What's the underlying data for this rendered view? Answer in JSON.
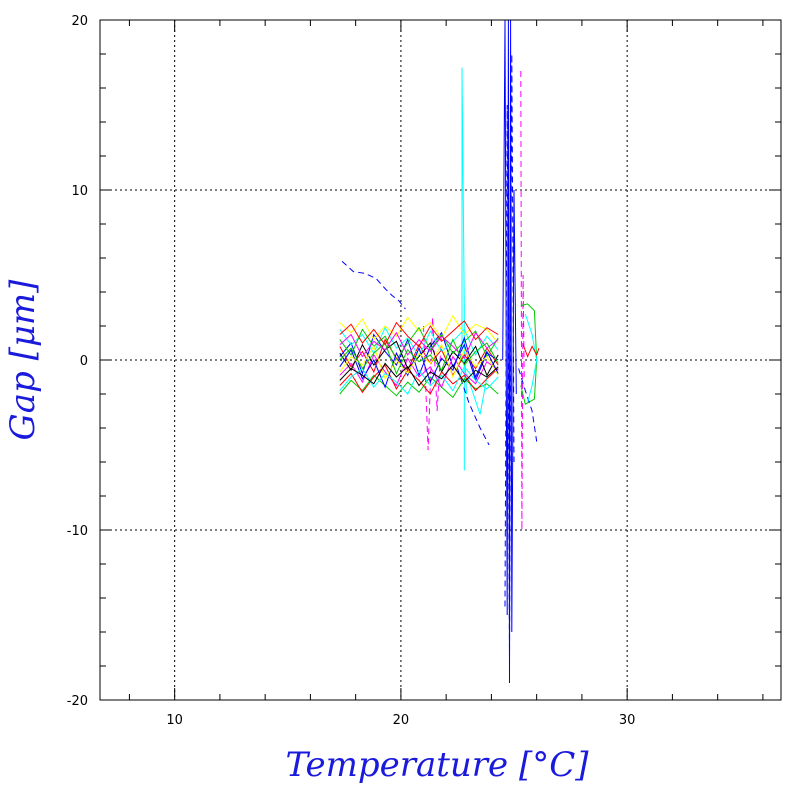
{
  "chart_data": {
    "type": "line",
    "title": "",
    "xlabel": "Temperature [°C]",
    "ylabel": "Gap [μm]",
    "xlim": [
      6.7,
      36.8
    ],
    "ylim": [
      -20,
      20
    ],
    "x_ticks": [
      {
        "value": 10,
        "label": "10"
      },
      {
        "value": 20,
        "label": "20"
      },
      {
        "value": 30,
        "label": "30"
      }
    ],
    "y_ticks": [
      {
        "value": 20,
        "label": "20"
      },
      {
        "value": 10,
        "label": "10"
      },
      {
        "value": 0,
        "label": "0"
      },
      {
        "value": -10,
        "label": "-10"
      },
      {
        "value": -20,
        "label": "-20"
      }
    ],
    "x_minor_step": 2,
    "y_minor_step": 2,
    "grid": true,
    "grid_style": "dotted",
    "series_colors": [
      "#ff0000",
      "#00cc00",
      "#0000ff",
      "#00ffff",
      "#ff00ff",
      "#ffff00",
      "#000000"
    ],
    "series": [
      {
        "color": "#0000ff",
        "dash": "dashed",
        "x": [
          17.4,
          17.9,
          18.4,
          18.9,
          19.3,
          19.6,
          19.9,
          20.2
        ],
        "y": [
          5.8,
          5.2,
          5.1,
          4.8,
          4.2,
          3.8,
          3.5,
          3.0
        ]
      },
      {
        "color": "#00ffff",
        "dash": "solid",
        "x": [
          22.7,
          22.7,
          22.8,
          22.8,
          22.8,
          22.9
        ],
        "y": [
          0.5,
          17.2,
          3.0,
          -6.5,
          1.0,
          -2.0
        ]
      },
      {
        "color": "#0000ff",
        "dash": "solid",
        "x": [
          24.5,
          24.6,
          24.7,
          24.75,
          24.8,
          24.85,
          24.9,
          25.0,
          25.1
        ],
        "y": [
          0.0,
          20.0,
          -15.0,
          20.0,
          -19.0,
          20.0,
          -16.0,
          10.0,
          -2.0
        ]
      },
      {
        "color": "#0000ff",
        "dash": "dashed",
        "x": [
          24.6,
          24.7,
          24.8,
          24.9,
          25.0
        ],
        "y": [
          -14.5,
          15.0,
          -17.5,
          18.0,
          -6.0
        ]
      },
      {
        "color": "#ff00ff",
        "dash": "dashed",
        "x": [
          25.3,
          25.35,
          25.4,
          25.45
        ],
        "y": [
          17.0,
          -10.0,
          5.0,
          -1.0
        ]
      },
      {
        "color": "#00cc00",
        "dash": "solid",
        "x": [
          25.3,
          25.6,
          25.9,
          26.0,
          25.9,
          25.5,
          25.3
        ],
        "y": [
          3.2,
          3.3,
          2.9,
          0.0,
          -2.3,
          -2.6,
          -1.5
        ]
      },
      {
        "color": "#0000ff",
        "dash": "dashed",
        "x": [
          25.2,
          25.5,
          25.8,
          26.0
        ],
        "y": [
          -0.5,
          -1.8,
          -3.0,
          -4.8
        ]
      },
      {
        "color": "#00ffff",
        "dash": "solid",
        "x": [
          25.5,
          25.8,
          26.0,
          25.8,
          25.6
        ],
        "y": [
          2.7,
          1.5,
          0.0,
          -1.5,
          -2.5
        ]
      },
      {
        "color": "#ff0000",
        "dash": "solid",
        "x": [
          25.4,
          25.6,
          25.8,
          26.0,
          26.1
        ],
        "y": [
          0.9,
          0.2,
          0.8,
          0.3,
          0.7
        ]
      },
      {
        "color": "#0000ff",
        "dash": "dashed",
        "x": [
          22.5,
          23.0,
          23.5,
          23.9
        ],
        "y": [
          -0.5,
          -2.5,
          -4.0,
          -5.0
        ]
      },
      {
        "color": "#ff00ff",
        "dash": "dashed",
        "x": [
          21.0,
          21.2,
          21.4,
          21.6,
          21.8
        ],
        "y": [
          2.0,
          -5.3,
          2.5,
          -3.0,
          1.5
        ]
      },
      {
        "color": "#00ffff",
        "dash": "solid",
        "x": [
          22.9,
          23.2,
          23.5,
          23.8
        ],
        "y": [
          -0.8,
          -2.0,
          -3.2,
          -1.0
        ]
      },
      {
        "color": "#ff0000",
        "dash": "solid",
        "x": [
          17.3,
          17.8,
          18.3,
          18.8,
          19.3,
          19.8,
          20.3,
          20.8,
          21.3,
          21.8,
          22.3,
          22.8,
          23.3,
          23.8,
          24.3
        ],
        "y": [
          0.8,
          -0.4,
          0.5,
          -0.7,
          1.2,
          0.1,
          -0.6,
          0.9,
          -0.2,
          0.6,
          -0.9,
          0.3,
          -0.5,
          0.7,
          -0.3
        ]
      },
      {
        "color": "#00cc00",
        "dash": "solid",
        "x": [
          17.3,
          17.8,
          18.3,
          18.8,
          19.3,
          19.8,
          20.3,
          20.8,
          21.3,
          21.8,
          22.3,
          22.8,
          23.3,
          23.8,
          24.3
        ],
        "y": [
          -2.0,
          -1.2,
          -1.8,
          -0.9,
          -1.5,
          -2.1,
          -1.3,
          -1.9,
          -1.0,
          -1.6,
          -2.2,
          -1.1,
          -1.7,
          -1.4,
          -2.0
        ]
      },
      {
        "color": "#0000ff",
        "dash": "solid",
        "x": [
          17.3,
          17.8,
          18.3,
          18.8,
          19.3,
          19.8,
          20.3,
          20.8,
          21.3,
          21.8,
          22.3,
          22.8,
          23.3,
          23.8,
          24.3
        ],
        "y": [
          0.2,
          1.0,
          -0.8,
          1.5,
          0.5,
          -0.3,
          1.2,
          -0.9,
          0.8,
          1.6,
          -0.4,
          0.9,
          -1.2,
          0.4,
          0.0
        ]
      },
      {
        "color": "#00ffff",
        "dash": "solid",
        "x": [
          17.3,
          17.8,
          18.3,
          18.8,
          19.3,
          19.8,
          20.3,
          20.8,
          21.3,
          21.8,
          22.3,
          22.8,
          23.3,
          23.8,
          24.3
        ],
        "y": [
          1.8,
          0.9,
          1.5,
          0.4,
          1.9,
          0.7,
          1.3,
          0.2,
          1.7,
          0.5,
          1.1,
          1.8,
          0.3,
          1.4,
          0.6
        ]
      },
      {
        "color": "#ff00ff",
        "dash": "solid",
        "x": [
          17.3,
          17.8,
          18.3,
          18.8,
          19.3,
          19.8,
          20.3,
          20.8,
          21.3,
          21.8,
          22.3,
          22.8,
          23.3,
          23.8,
          24.3
        ],
        "y": [
          -0.9,
          -0.2,
          -1.3,
          0.3,
          -0.7,
          -1.5,
          0.1,
          -1.0,
          -0.4,
          -1.6,
          0.2,
          -0.8,
          -1.4,
          -0.1,
          -0.6
        ]
      },
      {
        "color": "#ffff00",
        "dash": "solid",
        "x": [
          17.3,
          17.8,
          18.3,
          18.8,
          19.3,
          19.8,
          20.3,
          20.8,
          21.3,
          21.8,
          22.3,
          22.8,
          23.3,
          23.8,
          24.3
        ],
        "y": [
          2.2,
          1.6,
          2.4,
          1.2,
          2.0,
          1.4,
          2.5,
          1.7,
          2.2,
          1.3,
          2.6,
          1.5,
          2.1,
          1.8,
          1.0
        ]
      },
      {
        "color": "#000000",
        "dash": "solid",
        "x": [
          17.3,
          17.8,
          18.3,
          18.8,
          19.3,
          19.8,
          20.3,
          20.8,
          21.3,
          21.8,
          22.3,
          22.8,
          23.3,
          23.8,
          24.3
        ],
        "y": [
          0.4,
          -0.6,
          0.9,
          -0.3,
          0.6,
          1.1,
          -0.5,
          0.2,
          1.0,
          -0.7,
          0.5,
          -0.2,
          0.8,
          -0.9,
          0.3
        ]
      },
      {
        "color": "#ff0000",
        "dash": "solid",
        "x": [
          17.3,
          17.8,
          18.3,
          18.8,
          19.3,
          19.8,
          20.3,
          20.8,
          21.3,
          21.8,
          22.3,
          22.8,
          23.3,
          23.8,
          24.3
        ],
        "y": [
          -1.5,
          -0.8,
          -1.9,
          -1.0,
          -0.3,
          -1.7,
          -0.6,
          -1.2,
          -2.0,
          -0.7,
          -1.4,
          -0.9,
          -1.8,
          -1.1,
          -0.5
        ]
      },
      {
        "color": "#00cc00",
        "dash": "solid",
        "x": [
          17.3,
          17.8,
          18.3,
          18.8,
          19.3,
          19.8,
          20.3,
          20.8,
          21.3,
          21.8,
          22.3,
          22.8,
          23.3,
          23.8,
          24.3
        ],
        "y": [
          1.2,
          0.3,
          1.8,
          0.8,
          1.4,
          0.0,
          1.0,
          1.9,
          0.6,
          1.5,
          0.4,
          1.1,
          1.7,
          0.2,
          1.3
        ]
      },
      {
        "color": "#0000ff",
        "dash": "solid",
        "x": [
          17.3,
          17.8,
          18.3,
          18.8,
          19.3,
          19.8,
          20.3,
          20.8,
          21.3,
          21.8,
          22.3,
          22.8,
          23.3,
          23.8,
          24.3
        ],
        "y": [
          -0.4,
          0.6,
          -1.1,
          0.0,
          -1.6,
          0.4,
          -0.9,
          0.7,
          -1.3,
          0.1,
          -0.6,
          1.3,
          -1.0,
          0.5,
          -0.8
        ]
      },
      {
        "color": "#00ffff",
        "dash": "solid",
        "x": [
          17.3,
          17.8,
          18.3,
          18.8,
          19.3,
          19.8,
          20.3,
          20.8,
          21.3,
          21.8,
          22.3,
          22.8,
          23.3,
          23.8,
          24.3
        ],
        "y": [
          -1.8,
          -1.0,
          -0.5,
          -1.6,
          -0.8,
          -1.3,
          -2.0,
          -0.6,
          -1.5,
          -0.9,
          -1.8,
          -0.4,
          -1.2,
          -1.7,
          -1.0
        ]
      },
      {
        "color": "#ff00ff",
        "dash": "solid",
        "x": [
          17.3,
          17.8,
          18.3,
          18.8,
          19.3,
          19.8,
          20.3,
          20.8,
          21.3,
          21.8,
          22.3,
          22.8,
          23.3,
          23.8,
          24.3
        ],
        "y": [
          0.9,
          1.5,
          0.2,
          1.1,
          0.6,
          1.6,
          0.3,
          1.2,
          0.5,
          1.4,
          0.8,
          0.1,
          1.6,
          0.7,
          1.2
        ]
      },
      {
        "color": "#ffff00",
        "dash": "solid",
        "x": [
          17.3,
          17.8,
          18.3,
          18.8,
          19.3,
          19.8,
          20.3,
          20.8,
          21.3,
          21.8,
          22.3,
          22.8,
          23.3,
          23.8,
          24.3
        ],
        "y": [
          -0.7,
          0.2,
          -0.3,
          0.8,
          -1.1,
          0.0,
          -0.8,
          0.4,
          -0.2,
          0.9,
          -1.0,
          0.6,
          -0.4,
          0.2,
          -0.9
        ]
      },
      {
        "color": "#000000",
        "dash": "solid",
        "x": [
          17.3,
          17.8,
          18.3,
          18.8,
          19.3,
          19.8,
          20.3,
          20.8,
          21.3,
          21.8,
          22.3,
          22.8,
          23.3,
          23.8,
          24.3
        ],
        "y": [
          -1.2,
          -0.5,
          -0.9,
          -1.4,
          -0.2,
          -1.0,
          -0.4,
          -1.5,
          -0.7,
          -1.1,
          -0.3,
          -1.3,
          -0.6,
          -1.0,
          -0.4
        ]
      },
      {
        "color": "#00cc00",
        "dash": "solid",
        "x": [
          17.3,
          17.8,
          18.3,
          18.8,
          19.3,
          19.8,
          20.3,
          20.8,
          21.3,
          21.8,
          22.3,
          22.8,
          23.3,
          23.8,
          24.3
        ],
        "y": [
          0.0,
          0.7,
          -0.5,
          0.4,
          1.0,
          -0.8,
          0.6,
          -0.1,
          0.3,
          -0.6,
          1.2,
          -0.3,
          0.5,
          1.0,
          -0.2
        ]
      },
      {
        "color": "#ff0000",
        "dash": "solid",
        "x": [
          17.3,
          17.8,
          18.3,
          18.8,
          19.3,
          19.8,
          20.3,
          20.8,
          21.3,
          21.8,
          22.3,
          22.8,
          23.3,
          23.8,
          24.3
        ],
        "y": [
          1.5,
          2.1,
          1.0,
          1.8,
          0.9,
          2.2,
          1.4,
          0.8,
          2.0,
          1.1,
          1.7,
          2.3,
          1.2,
          1.9,
          1.5
        ]
      }
    ]
  }
}
